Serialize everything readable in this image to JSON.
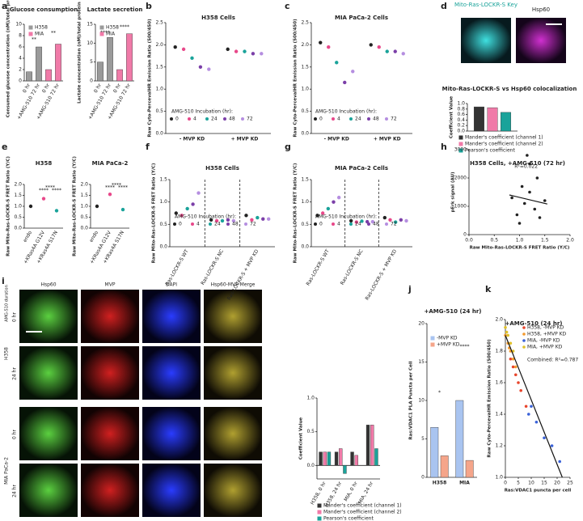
{
  "panel_letters": [
    "a",
    "b",
    "c",
    "d",
    "e",
    "f",
    "g",
    "h",
    "i",
    "j",
    "k"
  ],
  "figure_d": {
    "labels": [
      "Mito-Ras-LOCKR-S Key",
      "Hsp60"
    ]
  },
  "figure_i": {
    "side_label": "AMG-510 duration",
    "columns": [
      "Hsp60",
      "MVP",
      "DAPI",
      "Hsp60-MVP Merge"
    ],
    "rows": [
      {
        "line": "H358",
        "times": [
          "0 hr",
          "24 hr"
        ]
      },
      {
        "line": "MIA PaCa-2",
        "times": [
          "0 hr",
          "24 hr"
        ]
      }
    ]
  },
  "chart_data": [
    {
      "type": "bar",
      "title": "Glucose consumption",
      "ylabel": "Consumed glucose concentration (nM)/total protein",
      "categories": [
        "0 hr",
        "+AMG-510 72 hr",
        "0 hr",
        "+AMG-510 72 hr"
      ],
      "series": [
        {
          "name": "H358",
          "color": "#9a9a9a",
          "values": [
            1.6,
            6.0,
            null,
            null
          ]
        },
        {
          "name": "MIA",
          "color": "#f07aa8",
          "values": [
            null,
            null,
            2.0,
            6.5
          ]
        }
      ],
      "ylim": [
        0,
        10
      ],
      "yticks": [
        0,
        2,
        4,
        6,
        8,
        10
      ],
      "annotations": [
        "**",
        "**"
      ]
    },
    {
      "type": "bar",
      "title": "Lactate secretion",
      "ylabel": "Lactate concentration (nM)/total protein",
      "categories": [
        "0 hr",
        "+AMG-510 72 hr",
        "0 hr",
        "+AMG-510 72 hr"
      ],
      "series": [
        {
          "name": "H358",
          "color": "#9a9a9a",
          "values": [
            5.0,
            11.5,
            null,
            null
          ]
        },
        {
          "name": "MIA",
          "color": "#f07aa8",
          "values": [
            null,
            null,
            3.0,
            12.5
          ]
        }
      ],
      "ylim": [
        0,
        15
      ],
      "yticks": [
        0,
        5,
        10,
        15
      ],
      "annotations": [
        "****",
        "****"
      ]
    },
    {
      "type": "dot",
      "title": "H358 Cells",
      "ylabel": "Raw Cyto-PercevalHR Emission Ratio (500/450)",
      "legend_title": "AMG-510 Incubation (hr):",
      "categories": [
        "- MVP KD",
        "+ MVP KD"
      ],
      "series": [
        {
          "name": "0",
          "color": "#222222",
          "values": [
            1.95,
            1.9
          ]
        },
        {
          "name": "4",
          "color": "#e8488a",
          "values": [
            1.9,
            1.85
          ]
        },
        {
          "name": "24",
          "color": "#1aa39a",
          "values": [
            1.7,
            1.85
          ]
        },
        {
          "name": "48",
          "color": "#7b3fa8",
          "values": [
            1.5,
            1.8
          ]
        },
        {
          "name": "72",
          "color": "#b58ee0",
          "values": [
            1.45,
            1.8
          ]
        }
      ],
      "ylim": [
        0,
        2.5
      ],
      "yticks": [
        {
          "value": 0,
          "label": "0.0"
        },
        {
          "value": 0.5,
          "label": "0.5"
        },
        {
          "value": 1,
          "label": "1.0"
        },
        {
          "value": 1.5,
          "label": "1.5"
        },
        {
          "value": 2,
          "label": "2.0"
        },
        {
          "value": 2.5,
          "label": "2.5"
        }
      ]
    },
    {
      "type": "dot",
      "title": "MIA PaCa-2 Cells",
      "ylabel": "Raw Cyto-PercevalHR Emission Ratio (500/450)",
      "legend_title": "AMG-510 Incubation (hr):",
      "categories": [
        "- MVP KD",
        "+ MVP KD"
      ],
      "series": [
        {
          "name": "0",
          "color": "#222222",
          "values": [
            2.05,
            2.0
          ]
        },
        {
          "name": "4",
          "color": "#e8488a",
          "values": [
            1.95,
            1.95
          ]
        },
        {
          "name": "24",
          "color": "#1aa39a",
          "values": [
            1.6,
            1.85
          ]
        },
        {
          "name": "48",
          "color": "#7b3fa8",
          "values": [
            1.15,
            1.85
          ]
        },
        {
          "name": "72",
          "color": "#b58ee0",
          "values": [
            1.4,
            1.8
          ]
        }
      ],
      "ylim": [
        0,
        2.5
      ],
      "yticks": [
        {
          "value": 0,
          "label": "0.0"
        },
        {
          "value": 0.5,
          "label": "0.5"
        },
        {
          "value": 1,
          "label": "1.0"
        },
        {
          "value": 1.5,
          "label": "1.5"
        },
        {
          "value": 2,
          "label": "2.0"
        },
        {
          "value": 2.5,
          "label": "2.5"
        }
      ]
    },
    {
      "type": "bar",
      "title": "Mito-Ras-LOCKR-S vs Hsp60 colocalization",
      "ylabel": "Coefficient Value",
      "categories": [
        null
      ],
      "series": [
        {
          "name": "Mander's coefficient (channel 1)",
          "color": "#333333",
          "values": [
            0.88
          ]
        },
        {
          "name": "Mander's coefficient (channel 2)",
          "color": "#f07aa8",
          "values": [
            0.85
          ]
        },
        {
          "name": "Pearson's coefficient",
          "color": "#1aa39a",
          "values": [
            0.68
          ]
        }
      ],
      "ylim": [
        0,
        1
      ],
      "yticks": [
        {
          "value": 0,
          "label": "0.0"
        },
        {
          "value": 0.2,
          "label": "0.2"
        },
        {
          "value": 0.4,
          "label": "0.4"
        },
        {
          "value": 0.6,
          "label": "0.6"
        },
        {
          "value": 0.8,
          "label": "0.8"
        },
        {
          "value": 1,
          "label": "1.0"
        }
      ]
    },
    {
      "type": "dot",
      "title": "H358",
      "ylabel": "Raw Mito-Ras-LOCKR-S FRET Ratio (Y/C)",
      "categories": [
        "endo",
        "+KRas4A G12V",
        "+KRas4A S17N"
      ],
      "values": [
        1.0,
        1.35,
        0.8
      ],
      "colors": [
        "#222222",
        "#e8488a",
        "#1aa39a"
      ],
      "ylim": [
        0,
        2
      ],
      "yticks": [
        {
          "value": 0,
          "label": "0.0"
        },
        {
          "value": 0.5,
          "label": "0.5"
        },
        {
          "value": 1,
          "label": "1.0"
        },
        {
          "value": 1.5,
          "label": "1.5"
        },
        {
          "value": 2,
          "label": "2.0"
        }
      ],
      "annotations": [
        "****",
        "****",
        "****"
      ]
    },
    {
      "type": "dot",
      "title": "MIA PaCa-2",
      "ylabel": "Raw Mito-Ras-LOCKR-S FRET Ratio (Y/C)",
      "categories": [
        "endo",
        "+KRas4A G12V",
        "+KRas4A S17N"
      ],
      "values": [
        1.0,
        1.55,
        0.85
      ],
      "colors": [
        "#222222",
        "#e8488a",
        "#1aa39a"
      ],
      "ylim": [
        0,
        2
      ],
      "yticks": [
        {
          "value": 0,
          "label": "0.0"
        },
        {
          "value": 0.5,
          "label": "0.5"
        },
        {
          "value": 1,
          "label": "1.0"
        },
        {
          "value": 1.5,
          "label": "1.5"
        },
        {
          "value": 2,
          "label": "2.0"
        }
      ],
      "annotations": [
        "****",
        "****",
        "****"
      ]
    },
    {
      "type": "dot",
      "title": "H358 Cells",
      "ylabel": "Raw Mito-Ras-LOCKR-S FRET Ratio (Y/C)",
      "legend_title": "AMG-510 Incubation (hr):",
      "categories": [
        "Ras-LOCKR-S WT",
        "Ras-LOCKR-S NC",
        "Ras-LOCKR-S + MVP KD"
      ],
      "series": [
        {
          "name": "0",
          "color": "#222222",
          "values": [
            0.75,
            0.6,
            0.7
          ]
        },
        {
          "name": "4",
          "color": "#e8488a",
          "values": [
            0.7,
            0.58,
            0.6
          ]
        },
        {
          "name": "24",
          "color": "#1aa39a",
          "values": [
            0.85,
            0.58,
            0.65
          ]
        },
        {
          "name": "48",
          "color": "#7b3fa8",
          "values": [
            0.95,
            0.6,
            0.62
          ]
        },
        {
          "name": "72",
          "color": "#b58ee0",
          "values": [
            1.2,
            0.58,
            0.62
          ]
        }
      ],
      "ylim": [
        0,
        1.5
      ],
      "yticks": [
        {
          "value": 0,
          "label": "0.0"
        },
        {
          "value": 0.5,
          "label": "0.5"
        },
        {
          "value": 1,
          "label": "1.0"
        },
        {
          "value": 1.5,
          "label": "1.5"
        }
      ]
    },
    {
      "type": "dot",
      "title": "MIA PaCa-2 Cells",
      "ylabel": "Raw Mito-Ras-LOCKR-S FRET Ratio (Y/C)",
      "legend_title": "AMG-510 Incubation (hr):",
      "categories": [
        "Ras-LOCKR-S WT",
        "Ras-LOCKR-S NC",
        "Ras-LOCKR-S + MVP KD"
      ],
      "series": [
        {
          "name": "0",
          "color": "#222222",
          "values": [
            0.7,
            0.58,
            0.65
          ]
        },
        {
          "name": "4",
          "color": "#e8488a",
          "values": [
            0.75,
            0.55,
            0.6
          ]
        },
        {
          "name": "24",
          "color": "#1aa39a",
          "values": [
            0.85,
            0.57,
            0.55
          ]
        },
        {
          "name": "48",
          "color": "#7b3fa8",
          "values": [
            1.0,
            0.56,
            0.6
          ]
        },
        {
          "name": "72",
          "color": "#b58ee0",
          "values": [
            1.1,
            0.56,
            0.58
          ]
        }
      ],
      "ylim": [
        0,
        1.5
      ],
      "yticks": [
        {
          "value": 0,
          "label": "0.0"
        },
        {
          "value": 0.5,
          "label": "0.5"
        },
        {
          "value": 1,
          "label": "1.0"
        },
        {
          "value": 1.5,
          "label": "1.5"
        }
      ]
    },
    {
      "type": "scatter",
      "title": "H358 Cells, +AMG-510 (72 hr)",
      "xlabel": "Raw Mito-Ras-LOCKR-S FRET Ratio (Y/C)",
      "ylabel": "pErk signal (AU)",
      "annotation": "R²=0.022",
      "series": [
        {
          "color": "#222222",
          "x": [
            0.85,
            0.95,
            1.0,
            1.05,
            1.1,
            1.15,
            1.2,
            1.2,
            1.3,
            1.35,
            1.4,
            1.5
          ],
          "values": [
            1300,
            700,
            400,
            1700,
            1100,
            2800,
            1500,
            2500,
            900,
            2000,
            600,
            1200
          ]
        }
      ],
      "trendline": {
        "x": [
          0.8,
          1.55
        ],
        "y": [
          1400,
          1080
        ]
      },
      "xlim": [
        0,
        2
      ],
      "xticks": [
        {
          "value": 0,
          "label": "0.0"
        },
        {
          "value": 0.5,
          "label": "0.5"
        },
        {
          "value": 1,
          "label": "1.0"
        },
        {
          "value": 1.5,
          "label": "1.5"
        },
        {
          "value": 2,
          "label": "2.0"
        }
      ],
      "ylim": [
        0,
        3000
      ],
      "yticks": [
        0,
        1000,
        2000,
        3000
      ]
    },
    {
      "type": "bar",
      "ylabel": "Coefficient Value",
      "categories": [
        "H358, 0 hr",
        "H358, 24 hr",
        "MIA, 0 hr",
        "MIA, 24 hr"
      ],
      "series": [
        {
          "name": "Mander's coefficient (channel 1)",
          "color": "#333333",
          "values": [
            0.2,
            0.2,
            0.2,
            0.6
          ]
        },
        {
          "name": "Mander's coefficient (channel 2)",
          "color": "#f07aa8",
          "values": [
            0.2,
            0.25,
            0.15,
            0.6
          ]
        },
        {
          "name": "Pearson's coefficient",
          "color": "#1aa39a",
          "values": [
            0.2,
            -0.12,
            0.0,
            0.25
          ]
        }
      ],
      "ylim": [
        -0.2,
        1
      ],
      "yticks": [
        {
          "value": 0,
          "label": "0.0"
        },
        {
          "value": 0.5,
          "label": "0.5"
        },
        {
          "value": 1,
          "label": "1.0"
        }
      ]
    },
    {
      "type": "bar",
      "title": "+AMG-510 (24 hr)",
      "ylabel": "Ras:VDAC1 PLA Puncta per Cell",
      "categories": [
        "H358",
        "MIA"
      ],
      "series": [
        {
          "name": "-MVP KD",
          "color": "#a9c4f0",
          "values": [
            6.5,
            10
          ]
        },
        {
          "name": "+MVP KD",
          "color": "#f5a58a",
          "values": [
            2.8,
            2.2
          ]
        }
      ],
      "ylim": [
        0,
        20
      ],
      "yticks": [
        0,
        5,
        10,
        15,
        20
      ],
      "annotations": [
        "*",
        "****"
      ]
    },
    {
      "type": "scatter",
      "title": "+AMG-510 (24 hr)",
      "xlabel": "Ras:VDAC1 puncta per cell",
      "ylabel": "Raw Cyto-PercevalHR Emission Ratio (500/450)",
      "annotation": "Combined: R²=0.787",
      "series": [
        {
          "name": "H358, -MVP KD",
          "color": "#e8452c",
          "x": [
            3,
            4,
            6,
            8,
            2,
            5
          ],
          "values": [
            1.7,
            1.65,
            1.55,
            1.45,
            1.75,
            1.6
          ]
        },
        {
          "name": "H358, +MVP KD",
          "color": "#f39a2e",
          "x": [
            0,
            1,
            2,
            3,
            1.5,
            4
          ],
          "values": [
            1.9,
            1.85,
            1.8,
            1.75,
            1.82,
            1.7
          ]
        },
        {
          "name": "MIA, -MVP KD",
          "color": "#3a62d8",
          "x": [
            9,
            12,
            15,
            18,
            21,
            10
          ],
          "values": [
            1.4,
            1.35,
            1.25,
            1.2,
            1.1,
            1.45
          ]
        },
        {
          "name": "MIA, +MVP KD",
          "color": "#e0c02a",
          "x": [
            0,
            1,
            2,
            0.5,
            3
          ],
          "values": [
            1.95,
            1.9,
            1.85,
            1.92,
            1.8
          ]
        }
      ],
      "trendline": {
        "x": [
          0,
          22
        ],
        "y": [
          1.9,
          1.0
        ]
      },
      "xlim": [
        0,
        25
      ],
      "xticks": [
        0,
        5,
        10,
        15,
        20,
        25
      ],
      "ylim": [
        1,
        2
      ],
      "yticks": [
        {
          "value": 1,
          "label": "1.0"
        },
        {
          "value": 1.2,
          "label": "1.2"
        },
        {
          "value": 1.4,
          "label": "1.4"
        },
        {
          "value": 1.6,
          "label": "1.6"
        },
        {
          "value": 1.8,
          "label": "1.8"
        },
        {
          "value": 2,
          "label": "2.0"
        }
      ]
    }
  ]
}
